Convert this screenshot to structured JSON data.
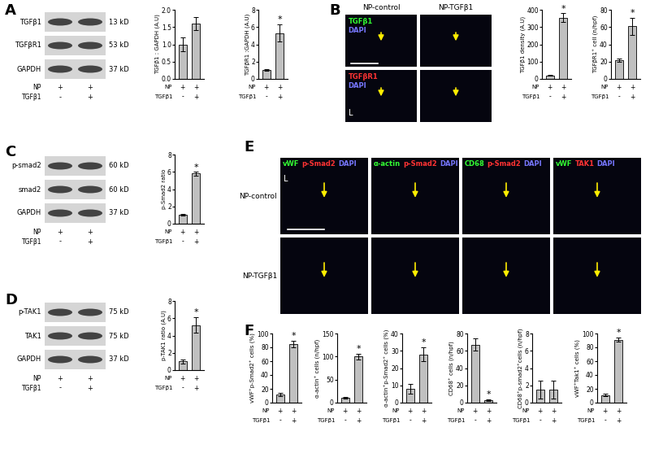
{
  "panel_labels": [
    "A",
    "B",
    "C",
    "D",
    "E",
    "F"
  ],
  "treatments": [
    {
      "label": "NP",
      "marks": [
        "+",
        "+"
      ]
    },
    {
      "label": "TGFβ1",
      "marks": [
        "-",
        "+"
      ]
    }
  ],
  "blots": [
    {
      "rows": [
        {
          "label": "TGFβ1",
          "size": "13 kD"
        },
        {
          "label": "TGFβR1",
          "size": "53 kD"
        },
        {
          "label": "GAPDH",
          "size": "37 kD"
        }
      ]
    },
    {
      "rows": [
        {
          "label": "p-smad2",
          "size": "60 kD"
        },
        {
          "label": "smad2",
          "size": "60 kD"
        },
        {
          "label": "GAPDH",
          "size": "37 kD"
        }
      ]
    },
    {
      "rows": [
        {
          "label": "p-TAK1",
          "size": "75 kD"
        },
        {
          "label": "TAK1",
          "size": "75 kD"
        },
        {
          "label": "GAPDH",
          "size": "37 kD"
        }
      ]
    }
  ],
  "micrographs": [
    {
      "columns": [
        "NP-control",
        "NP-TGFβ1"
      ],
      "rows": [
        {
          "stains": [
            {
              "text": "TGFβ1",
              "color": "#33ff33"
            },
            {
              "text": "DAPI",
              "color": "#7777ff"
            }
          ]
        },
        {
          "stains": [
            {
              "text": "TGFβR1",
              "color": "#ff3333"
            },
            {
              "text": "DAPI",
              "color": "#7777ff"
            }
          ],
          "marker": "L"
        }
      ]
    },
    {
      "rows": [
        "NP-control",
        "NP-TGFβ1"
      ],
      "marker": "L",
      "columns": [
        {
          "stains": [
            {
              "text": "vWF",
              "color": "#33ff33"
            },
            {
              "text": "p-Smad2",
              "color": "#ff3333"
            },
            {
              "text": "DAPI",
              "color": "#7777ff"
            }
          ]
        },
        {
          "stains": [
            {
              "text": "α-actin",
              "color": "#33ff33"
            },
            {
              "text": "p-Smad2",
              "color": "#ff3333"
            },
            {
              "text": "DAPI",
              "color": "#7777ff"
            }
          ]
        },
        {
          "stains": [
            {
              "text": "CD68",
              "color": "#33ff33"
            },
            {
              "text": "p-Smad2",
              "color": "#ff3333"
            },
            {
              "text": "DAPI",
              "color": "#7777ff"
            }
          ]
        },
        {
          "stains": [
            {
              "text": "vWF",
              "color": "#33ff33"
            },
            {
              "text": "TAK1",
              "color": "#ff3333"
            },
            {
              "text": "DAPI",
              "color": "#7777ff"
            }
          ]
        }
      ]
    }
  ],
  "chart_data": [
    {
      "type": "bar",
      "ylabel": "TGFβ1 : GAPDH (A.U)",
      "categories": [
        null,
        null
      ],
      "values": [
        1.0,
        1.6
      ],
      "errors": [
        0.2,
        0.2
      ],
      "ylim": [
        0,
        2.0
      ],
      "yticks": [
        {
          "value": 0,
          "label": "0.0"
        },
        {
          "value": 0.5,
          "label": "0.5"
        },
        {
          "value": 1.0,
          "label": "1.0"
        },
        {
          "value": 1.5,
          "label": "1.5"
        },
        {
          "value": 2.0,
          "label": "2.0"
        }
      ],
      "color": "#c0c0c0",
      "tick_labels": "y"
    },
    {
      "type": "bar",
      "ylabel": "TGFβR1 :GAPDH (A.U)",
      "categories": [
        null,
        null
      ],
      "values": [
        1.0,
        5.3
      ],
      "errors": [
        0.1,
        1.0
      ],
      "ylim": [
        0,
        8
      ],
      "yticks": [
        0,
        2,
        4,
        6,
        8
      ],
      "color": "#c0c0c0",
      "tick_labels": "y",
      "significance": {
        "text": "*",
        "bars": [
          1
        ]
      }
    },
    {
      "type": "bar",
      "ylabel": "TGFβ1 density (A.U)",
      "categories": [
        null,
        null
      ],
      "values": [
        20,
        355
      ],
      "errors": [
        3,
        25
      ],
      "ylim": [
        0,
        400
      ],
      "yticks": [
        0,
        100,
        200,
        300,
        400
      ],
      "color": "#c0c0c0",
      "tick_labels": "y",
      "significance": {
        "text": "*",
        "bars": [
          1
        ]
      }
    },
    {
      "type": "bar",
      "ylabel": "TGFβR1⁺ cell (n/hpf)",
      "categories": [
        null,
        null
      ],
      "values": [
        22,
        61
      ],
      "errors": [
        2,
        10
      ],
      "ylim": [
        0,
        80
      ],
      "yticks": [
        0,
        20,
        40,
        60,
        80
      ],
      "color": "#c0c0c0",
      "tick_labels": "y",
      "significance": {
        "text": "*",
        "bars": [
          1
        ]
      }
    },
    {
      "type": "bar",
      "ylabel": "p-Smad2 ratio",
      "categories": [
        null,
        null
      ],
      "values": [
        1.0,
        5.8
      ],
      "errors": [
        0.1,
        0.2
      ],
      "ylim": [
        0,
        8
      ],
      "yticks": [
        0,
        2,
        4,
        6,
        8
      ],
      "color": "#c0c0c0",
      "tick_labels": "y",
      "significance": {
        "text": "*",
        "bars": [
          1
        ]
      }
    },
    {
      "type": "bar",
      "ylabel": "p-TAK1 ratio (A.U)",
      "categories": [
        null,
        null
      ],
      "values": [
        1.0,
        5.2
      ],
      "errors": [
        0.2,
        0.9
      ],
      "ylim": [
        0,
        8
      ],
      "yticks": [
        0,
        2,
        4,
        6,
        8
      ],
      "color": "#c0c0c0",
      "tick_labels": "y",
      "significance": {
        "text": "*",
        "bars": [
          1
        ]
      }
    },
    {
      "type": "bar",
      "ylabel": "vWF⁺p-Smad2⁺ cells (%)",
      "categories": [
        null,
        null
      ],
      "values": [
        12,
        85
      ],
      "errors": [
        2,
        5
      ],
      "ylim": [
        0,
        100
      ],
      "yticks": [
        0,
        20,
        40,
        60,
        80,
        100
      ],
      "color": "#c0c0c0",
      "tick_labels": "y",
      "significance": {
        "text": "*",
        "bars": [
          1
        ]
      }
    },
    {
      "type": "bar",
      "ylabel": "α-actin⁺ cells (n/hpf)",
      "categories": [
        null,
        null
      ],
      "values": [
        10,
        100
      ],
      "errors": [
        2,
        6
      ],
      "ylim": [
        0,
        150
      ],
      "yticks": [
        0,
        50,
        100,
        150
      ],
      "color": "#c0c0c0",
      "tick_labels": "y",
      "significance": {
        "text": "*",
        "bars": [
          1
        ]
      }
    },
    {
      "type": "bar",
      "ylabel": "α-actin⁺p-Smad2⁺ cells (%)",
      "categories": [
        null,
        null
      ],
      "values": [
        8,
        28
      ],
      "errors": [
        3,
        4
      ],
      "ylim": [
        0,
        40
      ],
      "yticks": [
        0,
        10,
        20,
        30,
        40
      ],
      "color": "#c0c0c0",
      "tick_labels": "y",
      "significance": {
        "text": "*",
        "bars": [
          1
        ]
      }
    },
    {
      "type": "bar",
      "ylabel": "CD68⁺ cells (n/hpf)",
      "categories": [
        null,
        null
      ],
      "values": [
        67,
        3
      ],
      "errors": [
        7,
        1
      ],
      "ylim": [
        0,
        80
      ],
      "yticks": [
        0,
        20,
        40,
        60,
        80
      ],
      "color": "#c0c0c0",
      "tick_labels": "y",
      "significance": {
        "text": "*",
        "bars": [
          1
        ]
      }
    },
    {
      "type": "bar",
      "ylabel": "CD68⁺p-smad2⁺cells (n/hpf)",
      "categories": [
        null,
        null
      ],
      "values": [
        1.5,
        1.5
      ],
      "errors": [
        1,
        1
      ],
      "ylim": [
        0,
        8
      ],
      "yticks": [
        0,
        2,
        4,
        6,
        8
      ],
      "color": "#c0c0c0",
      "tick_labels": "y"
    },
    {
      "type": "bar",
      "ylabel": "vWF⁺Tak1⁺ cells (%)",
      "categories": [
        null,
        null
      ],
      "values": [
        11,
        91
      ],
      "errors": [
        2,
        3
      ],
      "ylim": [
        0,
        100
      ],
      "yticks": [
        0,
        20,
        40,
        60,
        80,
        100
      ],
      "color": "#c0c0c0",
      "tick_labels": "y",
      "significance": {
        "text": "*",
        "bars": [
          1
        ]
      }
    }
  ]
}
